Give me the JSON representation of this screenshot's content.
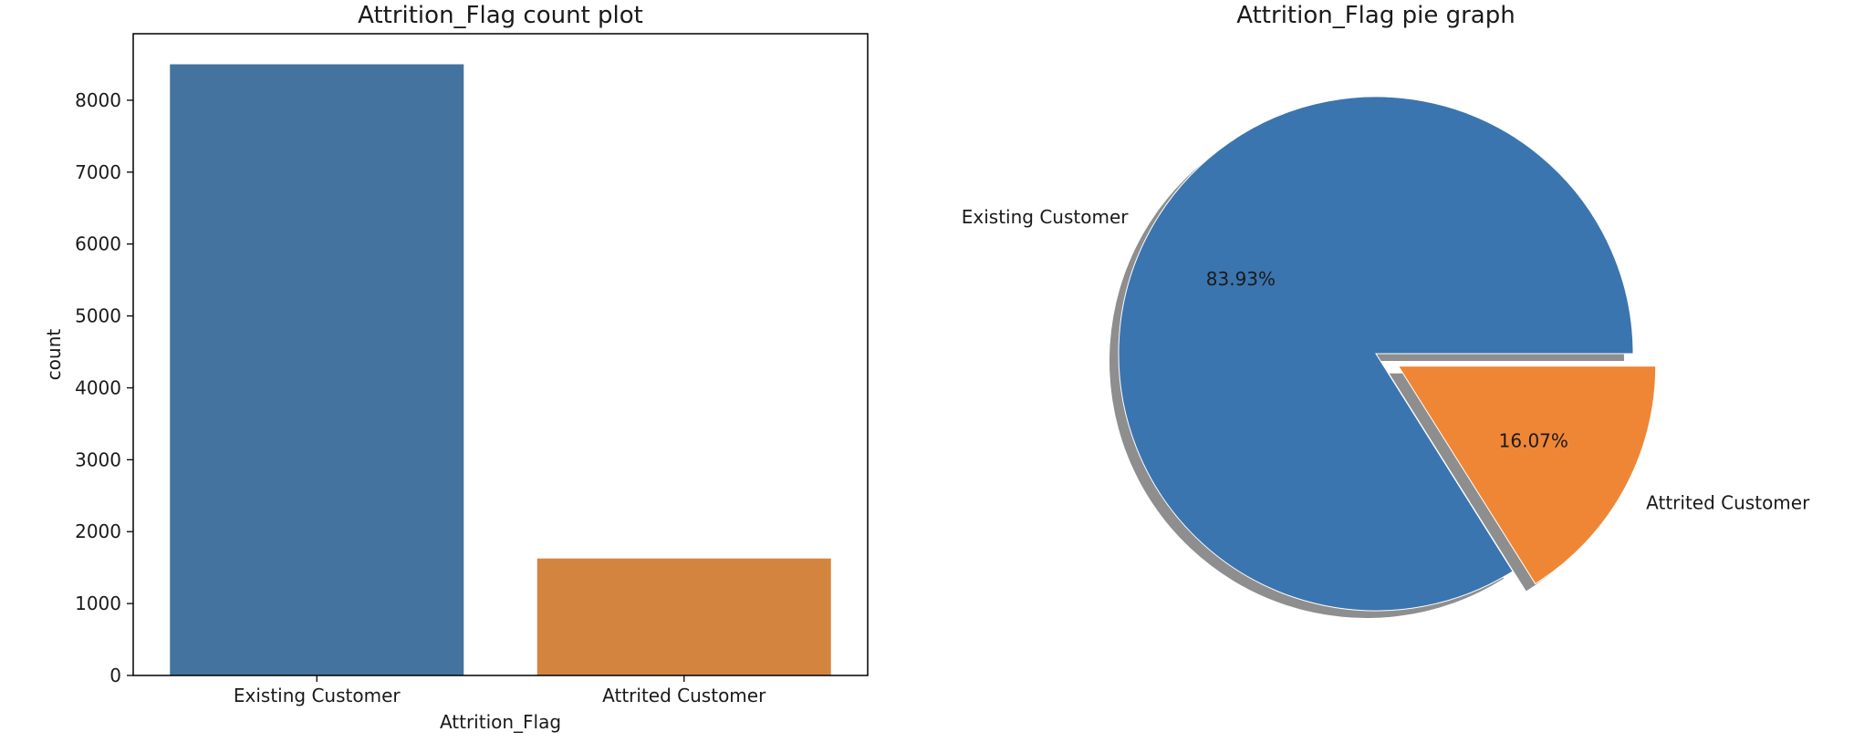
{
  "chart_data": [
    {
      "type": "bar",
      "title": "Attrition_Flag count plot",
      "xlabel": "Attrition_Flag",
      "ylabel": "count",
      "categories": [
        "Existing Customer",
        "Attrited Customer"
      ],
      "values": [
        8500,
        1627
      ],
      "ylim": [
        0,
        8925
      ],
      "yticks": [
        0,
        1000,
        2000,
        3000,
        4000,
        5000,
        6000,
        7000,
        8000
      ],
      "colors": [
        "#4473a0",
        "#d38540"
      ],
      "grid": false
    },
    {
      "type": "pie",
      "title": "Attrition_Flag pie graph",
      "labels": [
        "Existing Customer",
        "Attrited Customer"
      ],
      "values": [
        83.93,
        16.07
      ],
      "percent_labels": [
        "83.93%",
        "16.07%"
      ],
      "explode": [
        0,
        0.1
      ],
      "shadow": true,
      "colors": [
        "#3b75af",
        "#ef8636"
      ],
      "shadow_color": "#8e8e8e"
    }
  ]
}
